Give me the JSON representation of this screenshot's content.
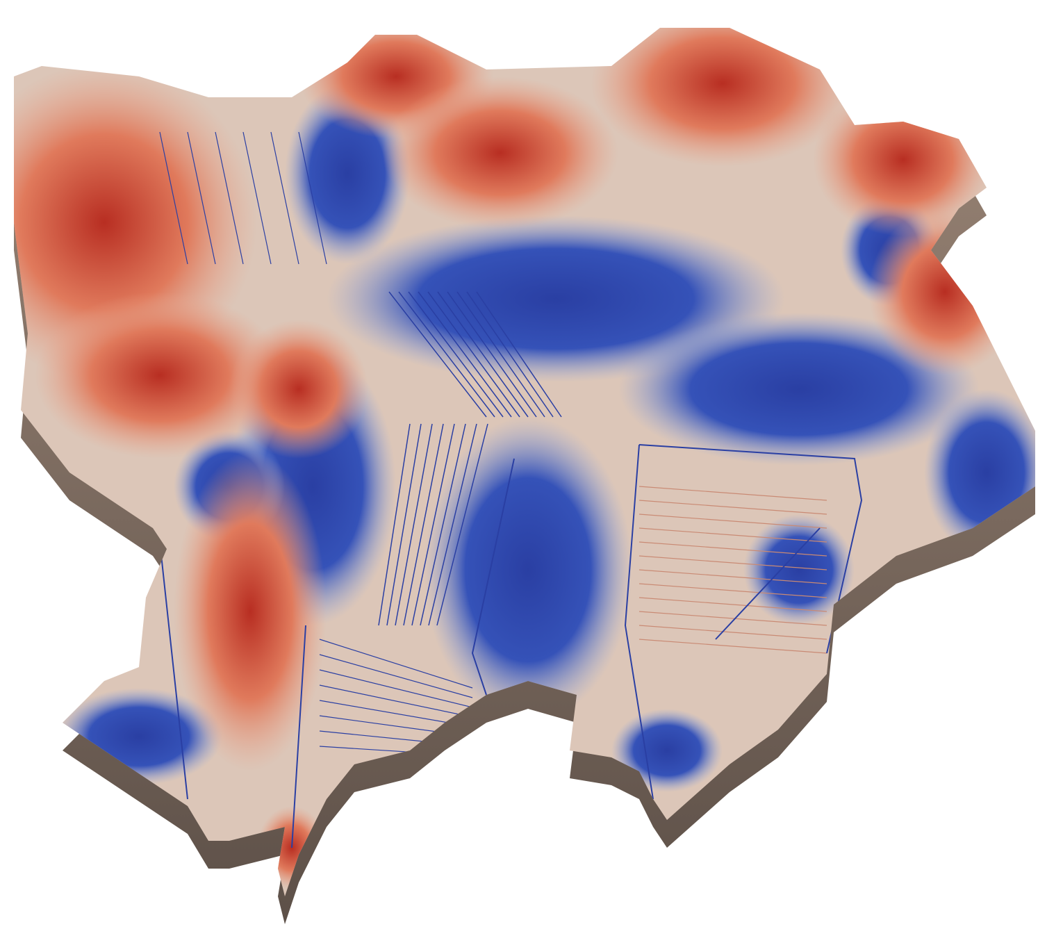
{
  "map": {
    "type": "3d-terrain-surface",
    "colormap": "coolwarm",
    "colors": {
      "high": "#c0392b",
      "mid_high": "#e8896a",
      "mid": "#e3c9b8",
      "mid_low": "#a9bde6",
      "low": "#2a3fa3",
      "side": "#7a6a5e",
      "background": "#ffffff"
    }
  }
}
